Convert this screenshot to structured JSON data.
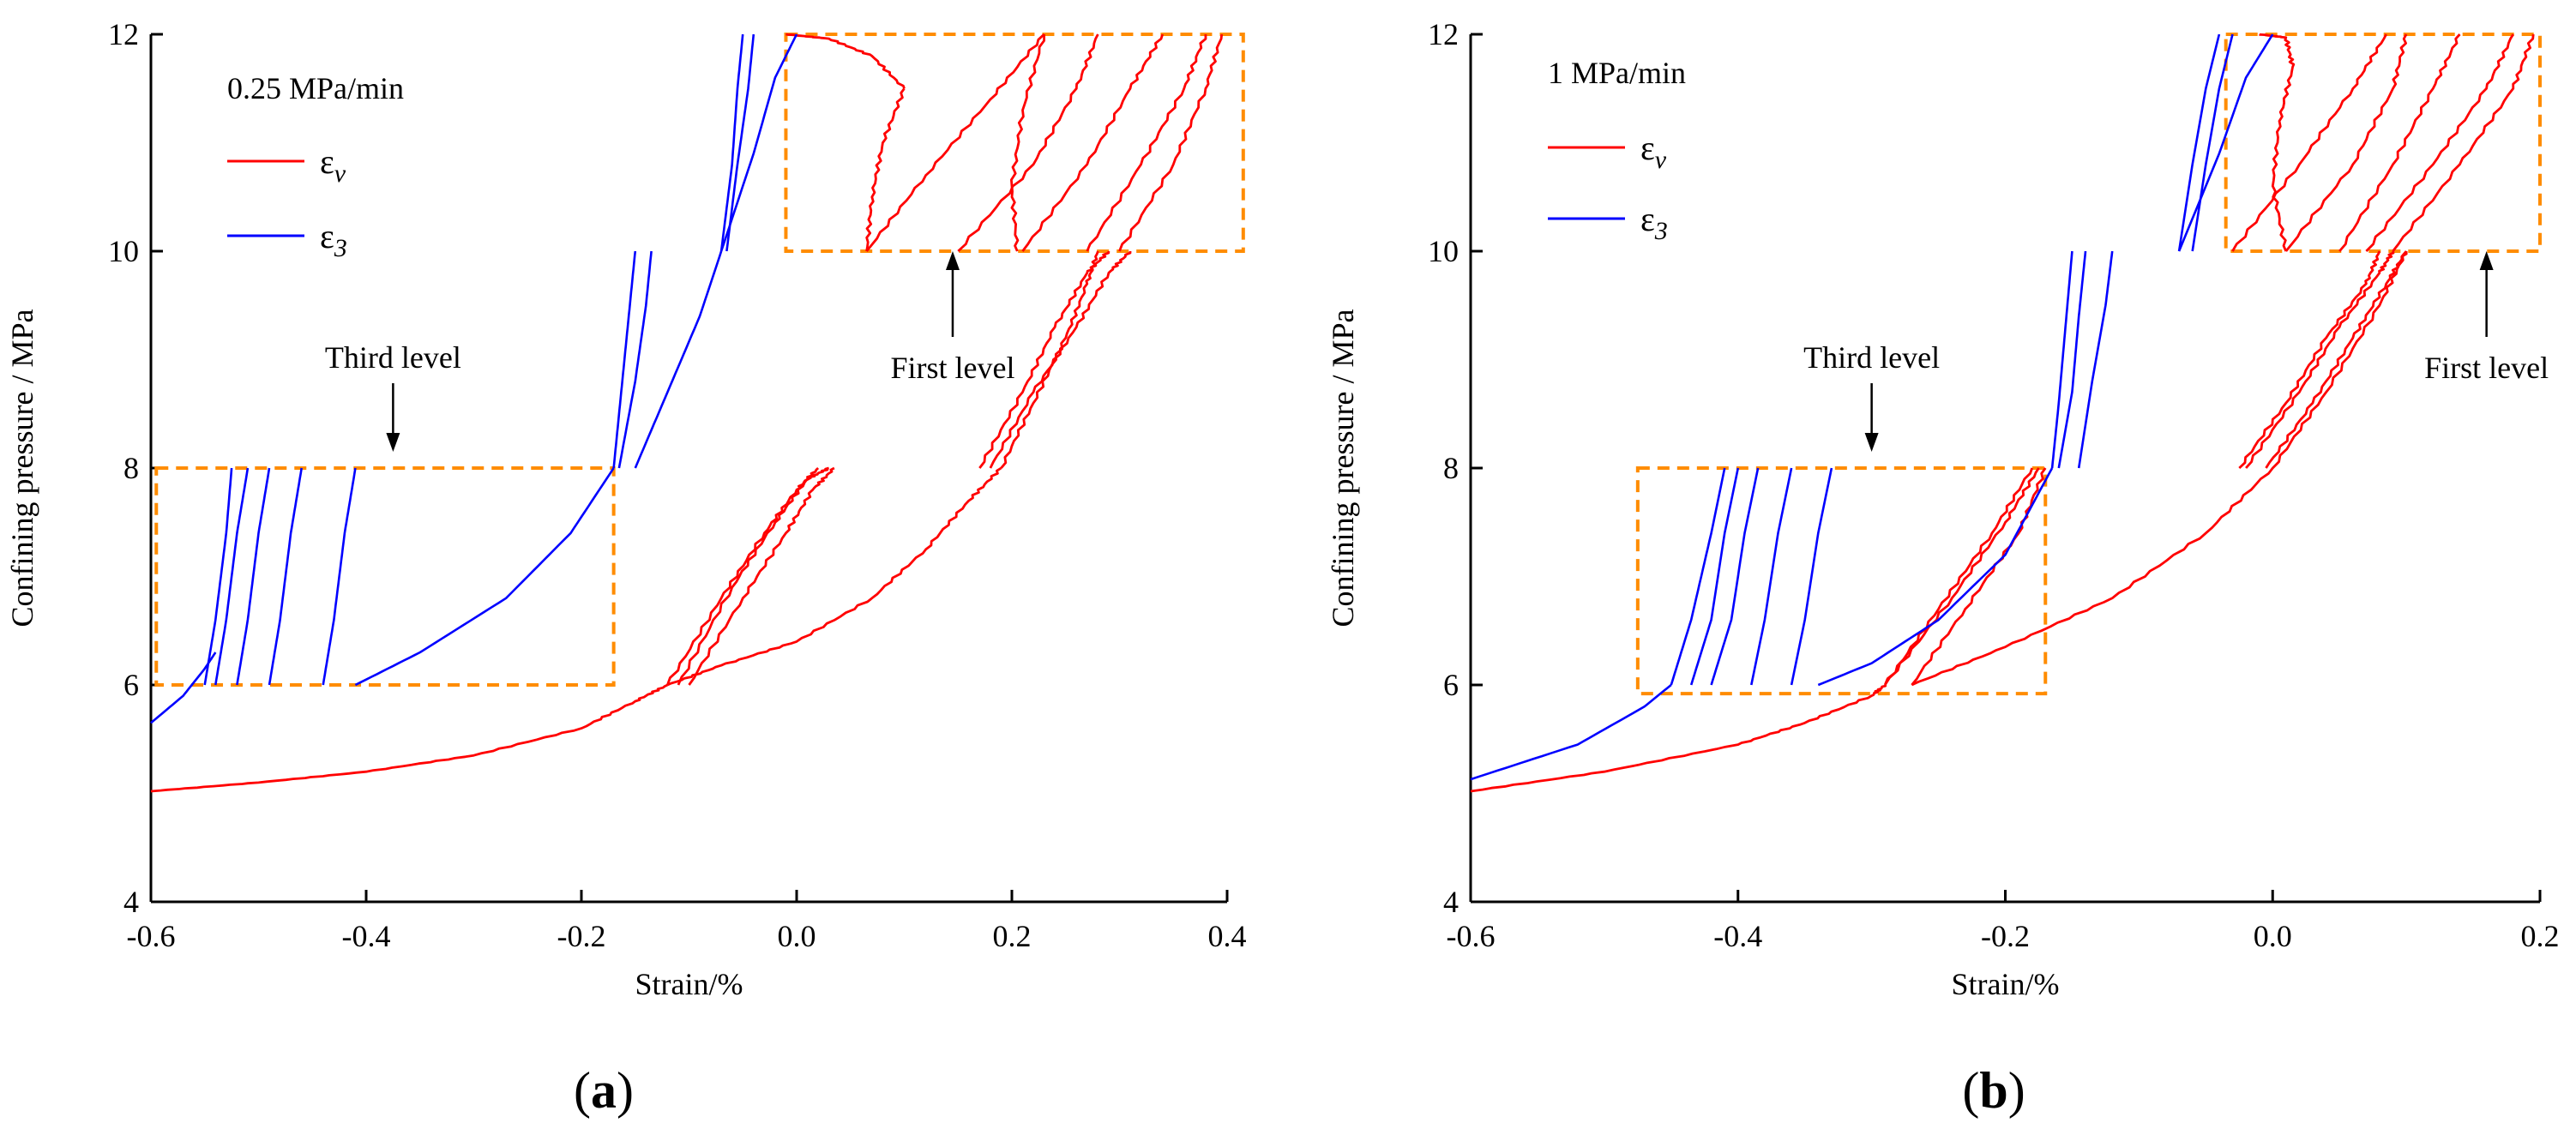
{
  "figure": {
    "panels": [
      {
        "label": "(a)",
        "rate": "0.25 MPa/min"
      },
      {
        "label": "(b)",
        "rate": "1 MPa/min"
      }
    ]
  },
  "chart_data": [
    {
      "type": "line",
      "panel_label": "(a)",
      "rate_label": "0.25 MPa/min",
      "xlabel": "Strain/%",
      "ylabel": "Confining pressure / MPa",
      "xlim": [
        -0.6,
        0.4
      ],
      "ylim": [
        4,
        12
      ],
      "x_ticks": [
        "-0.6",
        "-0.4",
        "-0.2",
        "0.0",
        "0.2",
        "0.4"
      ],
      "y_ticks": [
        "4",
        "6",
        "8",
        "10",
        "12"
      ],
      "grid": false,
      "legend_position": "top-left",
      "legend": [
        {
          "label": "εv",
          "color": "#ff0000"
        },
        {
          "label": "ε3",
          "color": "#0000ff"
        }
      ],
      "annotations": [
        {
          "text": "Third level",
          "box": {
            "x": [
              -0.595,
              -0.17
            ],
            "y": [
              6,
              8
            ]
          },
          "arrow_to": [
            -0.375,
            8.15
          ]
        },
        {
          "text": "First level",
          "box": {
            "x": [
              -0.01,
              0.415
            ],
            "y": [
              10,
              12
            ]
          },
          "arrow_to": [
            0.145,
            10.0
          ]
        }
      ],
      "series": [
        {
          "color": "#ff0000",
          "x": [
            -0.6,
            -0.5,
            -0.4,
            -0.3,
            -0.2,
            -0.15,
            -0.12
          ],
          "y": [
            5.02,
            5.1,
            5.2,
            5.35,
            5.6,
            5.85,
            6.0
          ]
        },
        {
          "color": "#ff0000",
          "x": [
            -0.12,
            -0.07,
            0.0,
            0.07,
            0.12,
            0.16,
            0.19
          ],
          "y": [
            6.0,
            6.18,
            6.4,
            6.8,
            7.25,
            7.7,
            8.0
          ]
        },
        {
          "color": "#ff0000",
          "x": [
            -0.12,
            -0.07,
            -0.03,
            0.0,
            0.02
          ],
          "y": [
            6.0,
            6.8,
            7.4,
            7.8,
            8.0
          ]
        },
        {
          "color": "#ff0000",
          "x": [
            -0.11,
            -0.06,
            -0.02,
            0.01,
            0.03
          ],
          "y": [
            6.0,
            6.9,
            7.5,
            7.9,
            8.0
          ]
        },
        {
          "color": "#ff0000",
          "x": [
            -0.1,
            -0.05,
            -0.01,
            0.015,
            0.035
          ],
          "y": [
            6.0,
            6.8,
            7.4,
            7.8,
            8.0
          ]
        },
        {
          "color": "#ff0000",
          "x": [
            0.19,
            0.22,
            0.25,
            0.27,
            0.28
          ],
          "y": [
            8.0,
            8.6,
            9.2,
            9.7,
            10.0
          ]
        },
        {
          "color": "#ff0000",
          "x": [
            0.17,
            0.21,
            0.24,
            0.27,
            0.29
          ],
          "y": [
            8.0,
            8.7,
            9.3,
            9.8,
            10.0
          ]
        },
        {
          "color": "#ff0000",
          "x": [
            0.18,
            0.22,
            0.26,
            0.29,
            0.31
          ],
          "y": [
            8.0,
            8.7,
            9.3,
            9.8,
            10.0
          ]
        },
        {
          "color": "#ff0000",
          "x": [
            -0.01,
            0.03,
            0.07,
            0.1
          ],
          "y": [
            12.0,
            11.96,
            11.8,
            11.5
          ]
        },
        {
          "color": "#ff0000",
          "x": [
            0.1,
            0.08,
            0.07,
            0.065
          ],
          "y": [
            11.5,
            11.0,
            10.5,
            10.0
          ]
        },
        {
          "color": "#ff0000",
          "x": [
            0.065,
            0.12,
            0.18,
            0.23
          ],
          "y": [
            10.0,
            10.7,
            11.4,
            12.0
          ]
        },
        {
          "color": "#ff0000",
          "x": [
            0.23,
            0.21,
            0.2,
            0.205
          ],
          "y": [
            12.0,
            11.3,
            10.6,
            10.0
          ]
        },
        {
          "color": "#ff0000",
          "x": [
            0.15,
            0.22,
            0.26,
            0.28
          ],
          "y": [
            10.0,
            10.8,
            11.5,
            12.0
          ]
        },
        {
          "color": "#ff0000",
          "x": [
            0.21,
            0.27,
            0.31,
            0.34
          ],
          "y": [
            10.0,
            10.8,
            11.5,
            12.0
          ]
        },
        {
          "color": "#ff0000",
          "x": [
            0.27,
            0.32,
            0.36,
            0.38
          ],
          "y": [
            10.0,
            10.8,
            11.5,
            12.0
          ]
        },
        {
          "color": "#ff0000",
          "x": [
            0.3,
            0.35,
            0.38,
            0.395
          ],
          "y": [
            10.0,
            10.8,
            11.5,
            12.0
          ]
        },
        {
          "color": "#0000ff",
          "x": [
            -0.6,
            -0.57,
            -0.55,
            -0.54
          ],
          "y": [
            5.65,
            5.9,
            6.15,
            6.3
          ]
        },
        {
          "color": "#0000ff",
          "x": [
            -0.55,
            -0.54,
            -0.53,
            -0.525
          ],
          "y": [
            6.0,
            6.6,
            7.4,
            8.0
          ]
        },
        {
          "color": "#0000ff",
          "x": [
            -0.54,
            -0.53,
            -0.52,
            -0.51
          ],
          "y": [
            6.0,
            6.6,
            7.4,
            8.0
          ]
        },
        {
          "color": "#0000ff",
          "x": [
            -0.52,
            -0.51,
            -0.5,
            -0.49
          ],
          "y": [
            6.0,
            6.6,
            7.4,
            8.0
          ]
        },
        {
          "color": "#0000ff",
          "x": [
            -0.49,
            -0.48,
            -0.47,
            -0.46
          ],
          "y": [
            6.0,
            6.6,
            7.4,
            8.0
          ]
        },
        {
          "color": "#0000ff",
          "x": [
            -0.44,
            -0.43,
            -0.42,
            -0.41
          ],
          "y": [
            6.0,
            6.6,
            7.4,
            8.0
          ]
        },
        {
          "color": "#0000ff",
          "x": [
            -0.41,
            -0.35,
            -0.27,
            -0.21,
            -0.17
          ],
          "y": [
            6.0,
            6.3,
            6.8,
            7.4,
            8.0
          ]
        },
        {
          "color": "#0000ff",
          "x": [
            -0.17,
            -0.165,
            -0.16,
            -0.155,
            -0.15
          ],
          "y": [
            8.0,
            8.5,
            9.0,
            9.5,
            10.0
          ]
        },
        {
          "color": "#0000ff",
          "x": [
            -0.165,
            -0.15,
            -0.14,
            -0.135
          ],
          "y": [
            8.0,
            8.8,
            9.5,
            10.0
          ]
        },
        {
          "color": "#0000ff",
          "x": [
            -0.15,
            -0.12,
            -0.09,
            -0.07
          ],
          "y": [
            8.0,
            8.7,
            9.4,
            10.0
          ]
        },
        {
          "color": "#0000ff",
          "x": [
            -0.07,
            -0.06,
            -0.055,
            -0.05
          ],
          "y": [
            10.0,
            10.8,
            11.5,
            12.0
          ]
        },
        {
          "color": "#0000ff",
          "x": [
            -0.065,
            -0.055,
            -0.045,
            -0.04
          ],
          "y": [
            10.0,
            10.8,
            11.5,
            12.0
          ]
        },
        {
          "color": "#0000ff",
          "x": [
            -0.07,
            -0.04,
            -0.02,
            0.0
          ],
          "y": [
            10.0,
            10.9,
            11.6,
            12.0
          ]
        }
      ]
    },
    {
      "type": "line",
      "panel_label": "(b)",
      "rate_label": "1 MPa/min",
      "xlabel": "Strain/%",
      "ylabel": "Confining pressure / MPa",
      "xlim": [
        -0.6,
        0.2
      ],
      "ylim": [
        4,
        12
      ],
      "x_ticks": [
        "-0.6",
        "-0.4",
        "-0.2",
        "0.0",
        "0.2"
      ],
      "y_ticks": [
        "4",
        "6",
        "8",
        "10",
        "12"
      ],
      "grid": false,
      "legend_position": "top-left",
      "legend": [
        {
          "label": "εv",
          "color": "#ff0000"
        },
        {
          "label": "ε3",
          "color": "#0000ff"
        }
      ],
      "annotations": [
        {
          "text": "Third level",
          "box": {
            "x": [
              -0.475,
              -0.17
            ],
            "y": [
              5.92,
              8.0
            ]
          },
          "arrow_to": [
            -0.3,
            8.15
          ]
        },
        {
          "text": "First level",
          "box": {
            "x": [
              -0.035,
              0.2
            ],
            "y": [
              10,
              12
            ]
          },
          "arrow_to": [
            0.16,
            10.0
          ]
        }
      ],
      "series": [
        {
          "color": "#ff0000",
          "x": [
            -0.6,
            -0.5,
            -0.4,
            -0.35,
            -0.3,
            -0.29
          ],
          "y": [
            5.02,
            5.2,
            5.45,
            5.65,
            5.9,
            6.0
          ]
        },
        {
          "color": "#ff0000",
          "x": [
            -0.27,
            -0.2,
            -0.12,
            -0.05,
            0.0,
            0.04,
            0.08,
            0.1
          ],
          "y": [
            6.0,
            6.35,
            6.8,
            7.4,
            8.0,
            8.7,
            9.5,
            10.0
          ]
        },
        {
          "color": "#ff0000",
          "x": [
            -0.29,
            -0.25,
            -0.21,
            -0.18
          ],
          "y": [
            6.0,
            6.7,
            7.4,
            8.0
          ]
        },
        {
          "color": "#ff0000",
          "x": [
            -0.29,
            -0.24,
            -0.2,
            -0.175
          ],
          "y": [
            6.0,
            6.8,
            7.5,
            8.0
          ]
        },
        {
          "color": "#ff0000",
          "x": [
            -0.27,
            -0.23,
            -0.19,
            -0.17
          ],
          "y": [
            6.0,
            6.7,
            7.4,
            8.0
          ]
        },
        {
          "color": "#ff0000",
          "x": [
            -0.025,
            0.01,
            0.04,
            0.07,
            0.08
          ],
          "y": [
            8.0,
            8.6,
            9.2,
            9.7,
            10.0
          ]
        },
        {
          "color": "#ff0000",
          "x": [
            -0.02,
            0.02,
            0.05,
            0.08,
            0.09
          ],
          "y": [
            8.0,
            8.7,
            9.3,
            9.8,
            10.0
          ]
        },
        {
          "color": "#ff0000",
          "x": [
            -0.005,
            0.03,
            0.06,
            0.085,
            0.1
          ],
          "y": [
            8.0,
            8.6,
            9.2,
            9.7,
            10.0
          ]
        },
        {
          "color": "#ff0000",
          "x": [
            -0.01,
            0.01,
            0.015,
            0.005,
            0.0,
            0.01
          ],
          "y": [
            12.0,
            11.97,
            11.7,
            11.2,
            10.6,
            10.0
          ]
        },
        {
          "color": "#ff0000",
          "x": [
            -0.03,
            0.02,
            0.06,
            0.085
          ],
          "y": [
            10.0,
            10.8,
            11.5,
            12.0
          ]
        },
        {
          "color": "#ff0000",
          "x": [
            0.01,
            0.06,
            0.09,
            0.1
          ],
          "y": [
            10.0,
            10.8,
            11.5,
            12.0
          ]
        },
        {
          "color": "#ff0000",
          "x": [
            0.05,
            0.09,
            0.12,
            0.14
          ],
          "y": [
            10.0,
            10.8,
            11.5,
            12.0
          ]
        },
        {
          "color": "#ff0000",
          "x": [
            0.07,
            0.12,
            0.16,
            0.18
          ],
          "y": [
            10.0,
            10.8,
            11.5,
            12.0
          ]
        },
        {
          "color": "#ff0000",
          "x": [
            0.09,
            0.14,
            0.18,
            0.195
          ],
          "y": [
            10.0,
            10.8,
            11.5,
            12.0
          ]
        },
        {
          "color": "#0000ff",
          "x": [
            -0.6,
            -0.52,
            -0.47,
            -0.45
          ],
          "y": [
            5.13,
            5.45,
            5.8,
            6.0
          ]
        },
        {
          "color": "#0000ff",
          "x": [
            -0.45,
            -0.435,
            -0.42,
            -0.41
          ],
          "y": [
            6.0,
            6.6,
            7.4,
            8.0
          ]
        },
        {
          "color": "#0000ff",
          "x": [
            -0.435,
            -0.42,
            -0.41,
            -0.4
          ],
          "y": [
            6.0,
            6.6,
            7.4,
            8.0
          ]
        },
        {
          "color": "#0000ff",
          "x": [
            -0.42,
            -0.405,
            -0.395,
            -0.385
          ],
          "y": [
            6.0,
            6.6,
            7.4,
            8.0
          ]
        },
        {
          "color": "#0000ff",
          "x": [
            -0.39,
            -0.38,
            -0.37,
            -0.36
          ],
          "y": [
            6.0,
            6.6,
            7.4,
            8.0
          ]
        },
        {
          "color": "#0000ff",
          "x": [
            -0.36,
            -0.35,
            -0.34,
            -0.33
          ],
          "y": [
            6.0,
            6.6,
            7.4,
            8.0
          ]
        },
        {
          "color": "#0000ff",
          "x": [
            -0.34,
            -0.3,
            -0.25,
            -0.2,
            -0.165
          ],
          "y": [
            6.0,
            6.2,
            6.6,
            7.2,
            8.0
          ]
        },
        {
          "color": "#0000ff",
          "x": [
            -0.165,
            -0.16,
            -0.155,
            -0.15
          ],
          "y": [
            8.0,
            8.6,
            9.3,
            10.0
          ]
        },
        {
          "color": "#0000ff",
          "x": [
            -0.16,
            -0.15,
            -0.145,
            -0.14
          ],
          "y": [
            8.0,
            8.7,
            9.4,
            10.0
          ]
        },
        {
          "color": "#0000ff",
          "x": [
            -0.145,
            -0.135,
            -0.125,
            -0.12
          ],
          "y": [
            8.0,
            8.8,
            9.5,
            10.0
          ]
        },
        {
          "color": "#0000ff",
          "x": [
            -0.07,
            -0.06,
            -0.05,
            -0.04
          ],
          "y": [
            10.0,
            10.8,
            11.5,
            12.0
          ]
        },
        {
          "color": "#0000ff",
          "x": [
            -0.06,
            -0.05,
            -0.04,
            -0.03
          ],
          "y": [
            10.0,
            10.8,
            11.5,
            12.0
          ]
        },
        {
          "color": "#0000ff",
          "x": [
            -0.07,
            -0.04,
            -0.02,
            0.0
          ],
          "y": [
            10.0,
            10.9,
            11.6,
            12.0
          ]
        }
      ]
    }
  ]
}
